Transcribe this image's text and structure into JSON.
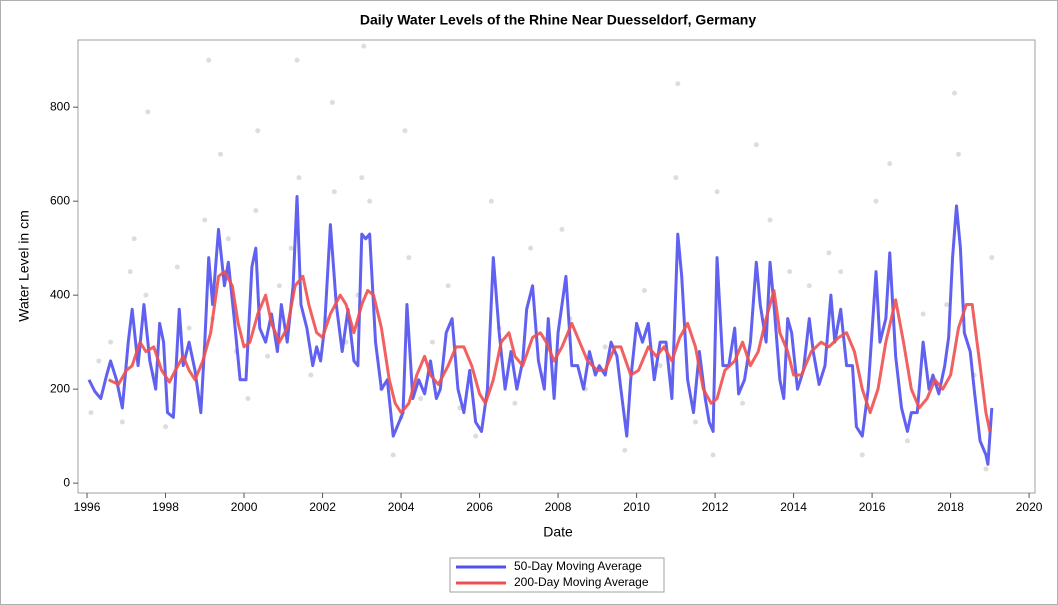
{
  "chart_data": {
    "type": "line",
    "title": "Daily Water Levels of the Rhine Near Duesseldorf, Germany",
    "x_label": "Date",
    "y_label": "Water Level in cm",
    "xlim": [
      1995.77,
      2020.15
    ],
    "xticks": [
      1996,
      1998,
      2000,
      2002,
      2004,
      2006,
      2008,
      2010,
      2012,
      2014,
      2016,
      2018,
      2020
    ],
    "ylim": [
      -21,
      943
    ],
    "yticks": [
      0,
      200,
      400,
      600,
      800
    ],
    "grid": false,
    "legend": "bottom",
    "observations": {
      "color": "#cfcfcf",
      "x": [
        1996.1,
        1996.3,
        1996.6,
        1996.9,
        1997.1,
        1997.2,
        1997.5,
        1997.55,
        1997.7,
        1998.0,
        1998.3,
        1998.6,
        1998.9,
        1999.0,
        1999.1,
        1999.2,
        1999.4,
        1999.6,
        1999.8,
        2000.1,
        2000.3,
        2000.35,
        2000.6,
        2000.9,
        2001.2,
        2001.35,
        2001.4,
        2001.7,
        2002.1,
        2002.25,
        2002.3,
        2002.6,
        2002.9,
        2003.0,
        2003.05,
        2003.2,
        2003.5,
        2003.8,
        2004.0,
        2004.1,
        2004.2,
        2004.5,
        2004.8,
        2005.2,
        2005.5,
        2005.9,
        2006.3,
        2006.5,
        2006.9,
        2007.3,
        2007.6,
        2008.1,
        2008.3,
        2008.7,
        2009.2,
        2009.7,
        2010.2,
        2010.6,
        2011.0,
        2011.05,
        2011.5,
        2011.95,
        2012.05,
        2012.7,
        2013.05,
        2013.4,
        2013.9,
        2014.4,
        2014.9,
        2015.2,
        2015.75,
        2016.1,
        2016.45,
        2016.9,
        2017.3,
        2017.9,
        2018.1,
        2018.2,
        2018.6,
        2018.9,
        2019.05
      ],
      "values": [
        150,
        260,
        300,
        130,
        450,
        520,
        400,
        790,
        230,
        120,
        460,
        330,
        180,
        560,
        900,
        350,
        700,
        520,
        280,
        180,
        580,
        750,
        270,
        420,
        500,
        900,
        650,
        230,
        350,
        810,
        620,
        300,
        400,
        650,
        930,
        600,
        200,
        60,
        140,
        750,
        480,
        180,
        300,
        420,
        160,
        100,
        600,
        330,
        170,
        500,
        230,
        540,
        350,
        200,
        290,
        70,
        410,
        250,
        650,
        850,
        130,
        60,
        620,
        170,
        720,
        560,
        450,
        420,
        490,
        450,
        60,
        600,
        680,
        90,
        360,
        380,
        830,
        700,
        230,
        30,
        480
      ]
    },
    "series": [
      {
        "name": "50-Day Moving Average",
        "color": "#5050f0",
        "x": [
          1996.05,
          1996.2,
          1996.35,
          1996.5,
          1996.6,
          1996.75,
          1996.9,
          1997.05,
          1997.15,
          1997.3,
          1997.45,
          1997.6,
          1997.75,
          1997.85,
          1997.95,
          1998.05,
          1998.2,
          1998.35,
          1998.45,
          1998.6,
          1998.75,
          1998.9,
          1999.0,
          1999.1,
          1999.2,
          1999.35,
          1999.5,
          1999.6,
          1999.75,
          1999.9,
          2000.05,
          2000.2,
          2000.3,
          2000.4,
          2000.55,
          2000.7,
          2000.85,
          2000.95,
          2001.1,
          2001.25,
          2001.35,
          2001.45,
          2001.6,
          2001.75,
          2001.85,
          2001.95,
          2002.05,
          2002.2,
          2002.35,
          2002.5,
          2002.65,
          2002.8,
          2002.9,
          2003.0,
          2003.1,
          2003.2,
          2003.35,
          2003.5,
          2003.65,
          2003.8,
          2003.95,
          2004.05,
          2004.15,
          2004.3,
          2004.45,
          2004.6,
          2004.75,
          2004.9,
          2005.0,
          2005.15,
          2005.3,
          2005.45,
          2005.6,
          2005.75,
          2005.9,
          2006.05,
          2006.2,
          2006.35,
          2006.5,
          2006.65,
          2006.8,
          2006.95,
          2007.1,
          2007.2,
          2007.35,
          2007.5,
          2007.65,
          2007.75,
          2007.9,
          2008.0,
          2008.2,
          2008.35,
          2008.5,
          2008.65,
          2008.8,
          2008.95,
          2009.05,
          2009.2,
          2009.35,
          2009.5,
          2009.6,
          2009.75,
          2009.85,
          2010.0,
          2010.15,
          2010.3,
          2010.45,
          2010.6,
          2010.75,
          2010.9,
          2011.05,
          2011.15,
          2011.3,
          2011.45,
          2011.6,
          2011.75,
          2011.85,
          2011.95,
          2012.05,
          2012.2,
          2012.35,
          2012.5,
          2012.6,
          2012.75,
          2012.9,
          2013.05,
          2013.15,
          2013.3,
          2013.4,
          2013.5,
          2013.65,
          2013.75,
          2013.85,
          2013.95,
          2014.1,
          2014.25,
          2014.4,
          2014.5,
          2014.65,
          2014.8,
          2014.95,
          2015.05,
          2015.2,
          2015.35,
          2015.5,
          2015.6,
          2015.75,
          2015.9,
          2016.1,
          2016.2,
          2016.35,
          2016.45,
          2016.6,
          2016.75,
          2016.9,
          2017.0,
          2017.15,
          2017.3,
          2017.45,
          2017.55,
          2017.7,
          2017.85,
          2017.95,
          2018.05,
          2018.15,
          2018.25,
          2018.35,
          2018.5,
          2018.6,
          2018.75,
          2018.9,
          2018.95,
          2019.05
        ],
        "values": [
          220,
          195,
          180,
          230,
          260,
          220,
          160,
          300,
          370,
          250,
          380,
          260,
          200,
          340,
          300,
          150,
          140,
          370,
          250,
          300,
          240,
          150,
          300,
          480,
          380,
          540,
          420,
          470,
          350,
          220,
          220,
          460,
          500,
          330,
          300,
          360,
          280,
          380,
          300,
          420,
          610,
          380,
          330,
          250,
          290,
          260,
          330,
          550,
          380,
          280,
          370,
          260,
          250,
          530,
          520,
          530,
          300,
          200,
          220,
          100,
          130,
          150,
          380,
          180,
          220,
          190,
          260,
          180,
          200,
          320,
          350,
          200,
          150,
          240,
          130,
          110,
          200,
          480,
          320,
          200,
          280,
          200,
          260,
          370,
          420,
          260,
          200,
          350,
          180,
          320,
          440,
          250,
          250,
          200,
          280,
          230,
          250,
          230,
          300,
          270,
          200,
          100,
          220,
          340,
          300,
          340,
          220,
          300,
          300,
          180,
          530,
          440,
          220,
          150,
          280,
          180,
          130,
          110,
          480,
          250,
          250,
          330,
          190,
          220,
          300,
          470,
          380,
          300,
          470,
          380,
          220,
          180,
          350,
          320,
          200,
          240,
          350,
          280,
          210,
          250,
          400,
          300,
          370,
          250,
          250,
          120,
          100,
          200,
          450,
          300,
          350,
          490,
          270,
          160,
          110,
          150,
          150,
          300,
          200,
          230,
          190,
          250,
          310,
          480,
          590,
          500,
          320,
          280,
          200,
          90,
          60,
          40,
          160
        ]
      },
      {
        "name": "200-Day Moving Average",
        "color": "#f05050",
        "x": [
          1996.55,
          1996.8,
          1997.0,
          1997.15,
          1997.35,
          1997.5,
          1997.7,
          1997.9,
          1998.1,
          1998.25,
          1998.45,
          1998.6,
          1998.75,
          1998.95,
          1999.15,
          1999.35,
          1999.5,
          1999.7,
          1999.85,
          2000.0,
          2000.15,
          2000.35,
          2000.55,
          2000.7,
          2000.9,
          2001.1,
          2001.3,
          2001.5,
          2001.65,
          2001.85,
          2002.0,
          2002.2,
          2002.45,
          2002.6,
          2002.8,
          2003.0,
          2003.15,
          2003.3,
          2003.5,
          2003.7,
          2003.85,
          2004.0,
          2004.2,
          2004.4,
          2004.6,
          2004.75,
          2004.95,
          2005.2,
          2005.4,
          2005.6,
          2005.8,
          2006.0,
          2006.15,
          2006.35,
          2006.55,
          2006.75,
          2006.9,
          2007.1,
          2007.35,
          2007.55,
          2007.7,
          2007.9,
          2008.1,
          2008.35,
          2008.5,
          2008.75,
          2009.0,
          2009.2,
          2009.45,
          2009.6,
          2009.85,
          2010.05,
          2010.3,
          2010.5,
          2010.7,
          2010.9,
          2011.1,
          2011.3,
          2011.5,
          2011.7,
          2011.9,
          2012.05,
          2012.25,
          2012.5,
          2012.7,
          2012.9,
          2013.1,
          2013.3,
          2013.5,
          2013.65,
          2013.85,
          2014.0,
          2014.2,
          2014.45,
          2014.7,
          2014.9,
          2015.15,
          2015.35,
          2015.55,
          2015.75,
          2015.95,
          2016.15,
          2016.35,
          2016.6,
          2016.8,
          2017.0,
          2017.2,
          2017.4,
          2017.6,
          2017.8,
          2018.0,
          2018.2,
          2018.4,
          2018.55,
          2018.75,
          2018.9,
          2019.0
        ],
        "values": [
          220,
          210,
          240,
          250,
          300,
          280,
          290,
          240,
          215,
          240,
          270,
          240,
          220,
          260,
          320,
          440,
          450,
          420,
          340,
          290,
          300,
          360,
          400,
          340,
          300,
          330,
          420,
          440,
          380,
          320,
          310,
          360,
          400,
          380,
          320,
          380,
          410,
          400,
          330,
          220,
          170,
          150,
          170,
          230,
          270,
          230,
          210,
          250,
          290,
          290,
          250,
          190,
          170,
          220,
          300,
          320,
          270,
          250,
          310,
          320,
          300,
          260,
          290,
          340,
          310,
          260,
          240,
          240,
          290,
          290,
          230,
          240,
          290,
          270,
          290,
          260,
          310,
          340,
          290,
          200,
          170,
          180,
          240,
          260,
          300,
          250,
          280,
          350,
          410,
          320,
          280,
          230,
          230,
          280,
          300,
          290,
          310,
          320,
          280,
          200,
          150,
          200,
          300,
          390,
          300,
          200,
          160,
          180,
          220,
          200,
          230,
          330,
          380,
          380,
          250,
          150,
          110
        ]
      }
    ]
  }
}
